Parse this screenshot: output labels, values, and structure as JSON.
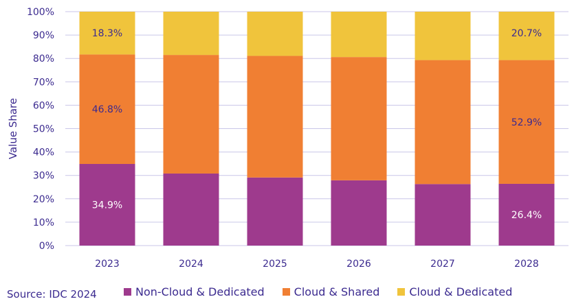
{
  "chart_data": {
    "type": "bar",
    "stacked": true,
    "categories": [
      "2023",
      "2024",
      "2025",
      "2026",
      "2027",
      "2028"
    ],
    "series": [
      {
        "name": "Non-Cloud & Dedicated",
        "color": "#9e3a8d",
        "values": [
          34.9,
          30.8,
          29.1,
          27.9,
          26.3,
          26.4
        ]
      },
      {
        "name": "Cloud & Shared",
        "color": "#f07f33",
        "values": [
          46.8,
          50.7,
          52.0,
          52.7,
          53.0,
          52.9
        ]
      },
      {
        "name": "Cloud & Dedicated",
        "color": "#f0c43c",
        "values": [
          18.3,
          18.5,
          18.9,
          19.4,
          20.7,
          20.7
        ]
      }
    ],
    "data_labels": [
      {
        "series": 2,
        "category": 0,
        "text": "18.3%"
      },
      {
        "series": 1,
        "category": 0,
        "text": "46.8%"
      },
      {
        "series": 0,
        "category": 0,
        "text": "34.9%"
      },
      {
        "series": 2,
        "category": 5,
        "text": "20.7%"
      },
      {
        "series": 1,
        "category": 5,
        "text": "52.9%"
      },
      {
        "series": 0,
        "category": 5,
        "text": "26.4%"
      }
    ],
    "ylabel": "Value  Share",
    "xlabel": "",
    "ylim": [
      0,
      100
    ],
    "yticks": [
      "0%",
      "10%",
      "20%",
      "30%",
      "40%",
      "50%",
      "60%",
      "70%",
      "80%",
      "90%",
      "100%"
    ],
    "grid": true,
    "legend": "bottom"
  },
  "source": "Source: IDC 2024",
  "colors": {
    "text": "#3b2a8f",
    "grid": "#c9c6e8"
  }
}
